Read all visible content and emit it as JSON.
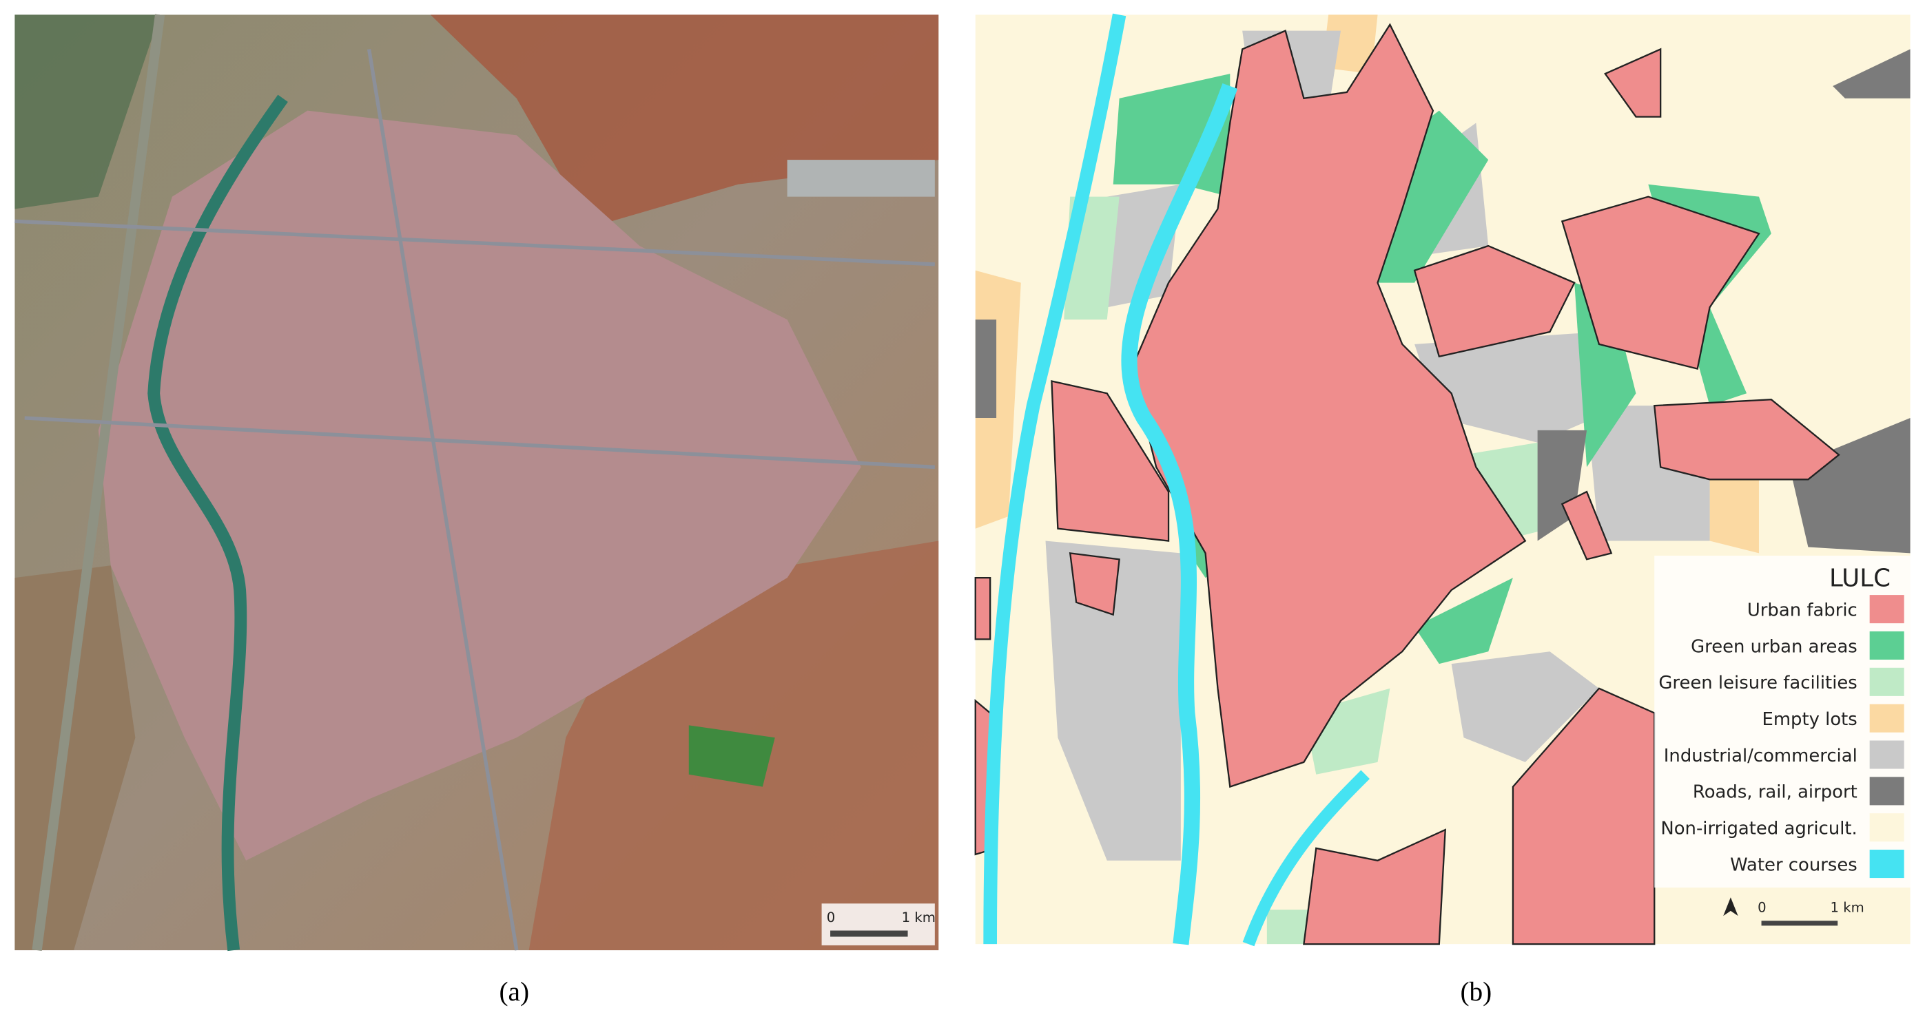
{
  "panels": [
    {
      "label": "(a)",
      "scale_bar": {
        "start": "0",
        "end": "1 km"
      }
    },
    {
      "label": "(b)",
      "scale_bar": {
        "start": "0",
        "end": "1 km"
      },
      "legend": {
        "title": "LULC",
        "items": [
          {
            "label": "Urban fabric",
            "color": "#ef8d8d"
          },
          {
            "label": "Green urban areas",
            "color": "#5ccf93"
          },
          {
            "label": "Green leisure facilities",
            "color": "#bfeac6"
          },
          {
            "label": "Empty lots",
            "color": "#fbd9a2"
          },
          {
            "label": "Industrial/commercial",
            "color": "#c9c9c9"
          },
          {
            "label": "Roads, rail, airport",
            "color": "#7b7b7b"
          },
          {
            "label": "Non-irrigated agricult.",
            "color": "#fdf6dc"
          },
          {
            "label": "Water courses",
            "color": "#45e3f2"
          }
        ]
      }
    }
  ]
}
